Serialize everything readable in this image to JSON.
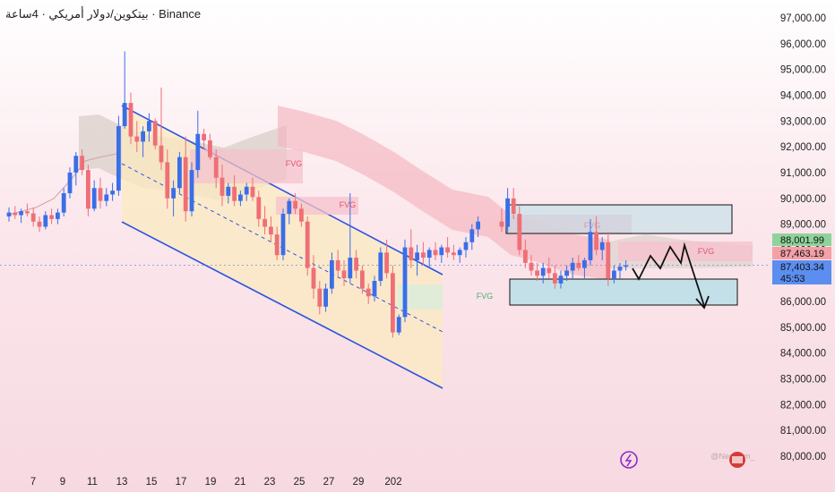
{
  "header": {
    "symbol_line": "Binance · بيتكوين/دولار أمريكي · 4ساعة"
  },
  "watermark": "@Nephilim_",
  "colors": {
    "bull": "#3a6ee8",
    "bear": "#ef6f76",
    "channel": "#2d55e0",
    "channel_fill": "#fbeac0",
    "cloud_bear": "#f5b4bd",
    "cloud_bull": "#d9cfc8",
    "zone_fill": "#b9dfe8",
    "fvg_red": "#f6c2cc",
    "fvg_green": "#d8eedc",
    "tag_green": "#8fd29a",
    "tag_red": "#f3a0a7",
    "tag_blue": "#5b8ef0"
  },
  "chart_data": {
    "type": "candlestick",
    "price_ticks": [
      "97,000.00",
      "96,000.00",
      "95,000.00",
      "94,000.00",
      "93,000.00",
      "92,000.00",
      "91,000.00",
      "90,000.00",
      "89,000.00",
      "88,000.00",
      "87,000.00",
      "86,000.00",
      "85,000.00",
      "84,000.00",
      "83,000.00",
      "82,000.00",
      "81,000.00",
      "80,000.00"
    ],
    "date_ticks": [
      "7",
      "9",
      "11",
      "13",
      "15",
      "17",
      "19",
      "21",
      "23",
      "25",
      "27",
      "29",
      "202"
    ],
    "ylim": [
      79800,
      97300
    ],
    "price_tags": [
      {
        "label": "88,001.99",
        "value": 88001.99,
        "kind": "green"
      },
      {
        "label": "87,463.19",
        "value": 87463.19,
        "kind": "red"
      },
      {
        "label": "87,403.34",
        "value": 87403.34,
        "kind": "blue"
      },
      {
        "label": "45:53",
        "value": null,
        "kind": "blue"
      }
    ],
    "last_price": 87403.34,
    "annotations": [
      "FVG",
      "FVG",
      "FVG",
      "FVG",
      "FVG"
    ],
    "candles": [
      [
        89300,
        89650,
        89100,
        89450
      ],
      [
        89450,
        89700,
        89200,
        89350
      ],
      [
        89350,
        89600,
        89050,
        89500
      ],
      [
        89500,
        89800,
        89300,
        89420
      ],
      [
        89420,
        89650,
        88900,
        89100
      ],
      [
        89100,
        89300,
        88700,
        88900
      ],
      [
        88900,
        89500,
        88800,
        89350
      ],
      [
        89350,
        89600,
        89000,
        89200
      ],
      [
        89200,
        89600,
        89000,
        89450
      ],
      [
        89450,
        90400,
        89300,
        90200
      ],
      [
        90200,
        91200,
        90000,
        91000
      ],
      [
        91000,
        91800,
        90500,
        91650
      ],
      [
        91650,
        91900,
        90900,
        91100
      ],
      [
        91100,
        91300,
        89300,
        89600
      ],
      [
        89600,
        90700,
        89500,
        90400
      ],
      [
        90400,
        90800,
        89600,
        89900
      ],
      [
        89900,
        90400,
        89700,
        90150
      ],
      [
        90150,
        90600,
        89900,
        90300
      ],
      [
        90300,
        93200,
        90100,
        92800
      ],
      [
        92800,
        95700,
        92700,
        93700
      ],
      [
        93700,
        94100,
        92100,
        92400
      ],
      [
        92400,
        93000,
        91800,
        92200
      ],
      [
        92200,
        92800,
        91600,
        92600
      ],
      [
        92600,
        93300,
        92200,
        93000
      ],
      [
        93000,
        93100,
        91900,
        92050
      ],
      [
        92050,
        94300,
        91100,
        91400
      ],
      [
        91400,
        91900,
        89600,
        90000
      ],
      [
        90000,
        90700,
        89300,
        90400
      ],
      [
        90400,
        91800,
        90200,
        91600
      ],
      [
        91600,
        92400,
        89100,
        89500
      ],
      [
        89500,
        91400,
        89300,
        91100
      ],
      [
        91100,
        93400,
        90800,
        92500
      ],
      [
        92500,
        92700,
        91900,
        92250
      ],
      [
        92250,
        92500,
        91500,
        91600
      ],
      [
        91600,
        91900,
        90400,
        90800
      ],
      [
        90800,
        91300,
        89700,
        90100
      ],
      [
        90100,
        90600,
        89800,
        90450
      ],
      [
        90450,
        90900,
        89700,
        89900
      ],
      [
        89900,
        90300,
        89700,
        90150
      ],
      [
        90150,
        90600,
        89900,
        90450
      ],
      [
        90450,
        90800,
        89900,
        90050
      ],
      [
        90050,
        90300,
        88900,
        89200
      ],
      [
        89200,
        89700,
        88600,
        88900
      ],
      [
        88900,
        89300,
        88300,
        88600
      ],
      [
        88600,
        88900,
        87600,
        87800
      ],
      [
        87800,
        89600,
        87600,
        89400
      ],
      [
        89400,
        90000,
        89000,
        89900
      ],
      [
        89900,
        90200,
        89400,
        89600
      ],
      [
        89600,
        89800,
        88900,
        89100
      ],
      [
        89100,
        89300,
        87000,
        87300
      ],
      [
        87300,
        87800,
        86100,
        86500
      ],
      [
        86500,
        86800,
        85500,
        85800
      ],
      [
        85800,
        86700,
        85600,
        86500
      ],
      [
        86500,
        87900,
        86300,
        87600
      ],
      [
        87600,
        88000,
        86900,
        87200
      ],
      [
        87200,
        87600,
        86600,
        86900
      ],
      [
        86900,
        90200,
        86700,
        87700
      ],
      [
        87700,
        88000,
        86900,
        87200
      ],
      [
        87200,
        87400,
        86300,
        86500
      ],
      [
        86500,
        86700,
        85900,
        86200
      ],
      [
        86200,
        87000,
        86000,
        86800
      ],
      [
        86800,
        88100,
        86600,
        87900
      ],
      [
        87900,
        88400,
        86900,
        87100
      ],
      [
        87100,
        87400,
        84600,
        84800
      ],
      [
        84800,
        85500,
        84700,
        85400
      ],
      [
        85400,
        88400,
        85200,
        88100
      ],
      [
        88100,
        88800,
        87300,
        87600
      ],
      [
        87600,
        88200,
        87000,
        87900
      ],
      [
        87900,
        88300,
        87400,
        87700
      ],
      [
        87700,
        88100,
        87300,
        88000
      ],
      [
        88000,
        88300,
        87600,
        87800
      ],
      [
        87800,
        88200,
        87500,
        88100
      ],
      [
        88100,
        88500,
        87700,
        87900
      ],
      [
        87900,
        88200,
        87600,
        87800
      ],
      [
        87800,
        88100,
        87500,
        88000
      ],
      [
        88000,
        88500,
        87700,
        88300
      ],
      [
        88300,
        89000,
        88000,
        88800
      ],
      [
        88800,
        89300,
        88500,
        89100
      ],
      [
        89100,
        89600,
        88700,
        88900
      ],
      [
        88900,
        90400,
        88600,
        90000
      ],
      [
        90000,
        90400,
        89200,
        89400
      ],
      [
        89400,
        89700,
        87800,
        88000
      ],
      [
        88000,
        88400,
        87300,
        87500
      ],
      [
        87500,
        87800,
        87000,
        87200
      ],
      [
        87200,
        87500,
        86800,
        87000
      ],
      [
        87000,
        87500,
        86700,
        87300
      ],
      [
        87300,
        87700,
        86900,
        87100
      ],
      [
        87100,
        87400,
        86500,
        86700
      ],
      [
        86700,
        87200,
        86500,
        87000
      ],
      [
        87000,
        87400,
        86800,
        87200
      ],
      [
        87200,
        87700,
        86900,
        87500
      ],
      [
        87500,
        87800,
        87200,
        87300
      ],
      [
        87300,
        87700,
        86900,
        87600
      ],
      [
        87600,
        89200,
        87400,
        88700
      ],
      [
        88700,
        89300,
        87800,
        88000
      ],
      [
        88000,
        88500,
        87600,
        88300
      ],
      [
        88300,
        88700,
        86600,
        86900
      ],
      [
        86900,
        87400,
        86700,
        87200
      ],
      [
        87200,
        87500,
        86900,
        87350
      ],
      [
        87350,
        87600,
        87200,
        87403
      ]
    ]
  }
}
